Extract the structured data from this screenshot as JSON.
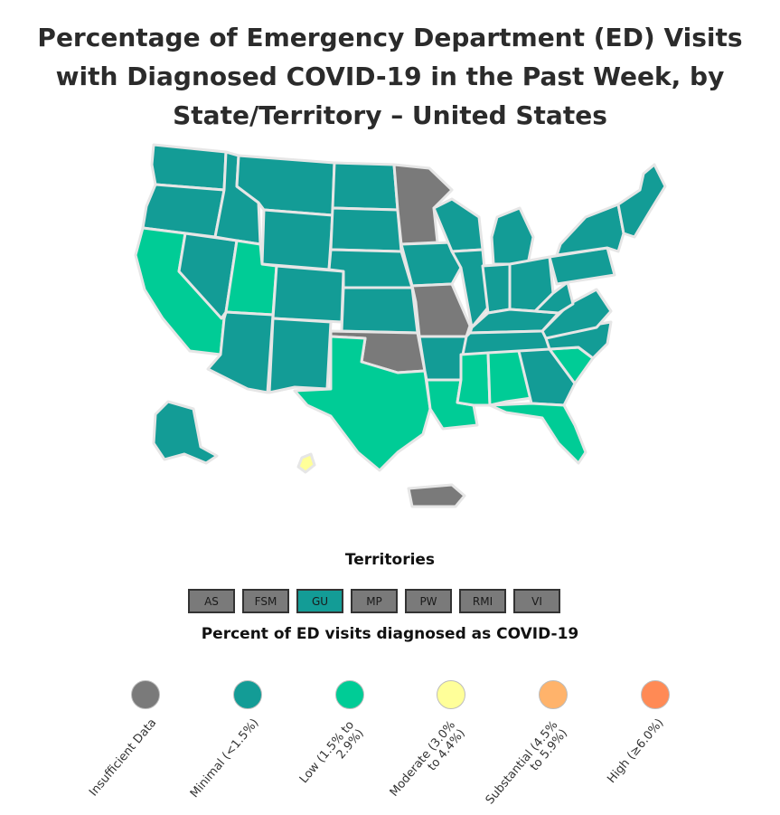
{
  "title": "Percentage of Emergency Department (ED) Visits with Diagnosed COVID-19 in the Past Week, by State/Territory – United States",
  "colors": {
    "insufficient": "#7a7a7a",
    "minimal": "#139c96",
    "low": "#00cc96",
    "moderate": "#ffff99",
    "substantial": "#ffb36b",
    "high": "#ff8a55",
    "border": "#e6e6e6"
  },
  "map": {
    "regions": [
      {
        "name": "Washington",
        "level": "minimal"
      },
      {
        "name": "Oregon",
        "level": "minimal"
      },
      {
        "name": "California",
        "level": "low"
      },
      {
        "name": "Nevada",
        "level": "minimal"
      },
      {
        "name": "Idaho",
        "level": "minimal"
      },
      {
        "name": "Montana",
        "level": "minimal"
      },
      {
        "name": "Wyoming",
        "level": "minimal"
      },
      {
        "name": "Utah",
        "level": "low"
      },
      {
        "name": "Arizona",
        "level": "minimal"
      },
      {
        "name": "Colorado",
        "level": "minimal"
      },
      {
        "name": "New Mexico",
        "level": "minimal"
      },
      {
        "name": "North Dakota",
        "level": "minimal"
      },
      {
        "name": "South Dakota",
        "level": "minimal"
      },
      {
        "name": "Nebraska",
        "level": "minimal"
      },
      {
        "name": "Kansas",
        "level": "minimal"
      },
      {
        "name": "Oklahoma",
        "level": "insufficient"
      },
      {
        "name": "Texas",
        "level": "low"
      },
      {
        "name": "Minnesota",
        "level": "insufficient"
      },
      {
        "name": "Iowa",
        "level": "minimal"
      },
      {
        "name": "Missouri",
        "level": "insufficient"
      },
      {
        "name": "Arkansas",
        "level": "minimal"
      },
      {
        "name": "Louisiana",
        "level": "low"
      },
      {
        "name": "Wisconsin",
        "level": "minimal"
      },
      {
        "name": "Illinois",
        "level": "minimal"
      },
      {
        "name": "Michigan",
        "level": "minimal"
      },
      {
        "name": "Indiana",
        "level": "minimal"
      },
      {
        "name": "Ohio",
        "level": "minimal"
      },
      {
        "name": "Kentucky",
        "level": "minimal"
      },
      {
        "name": "Tennessee",
        "level": "minimal"
      },
      {
        "name": "Mississippi",
        "level": "low"
      },
      {
        "name": "Alabama",
        "level": "low"
      },
      {
        "name": "Georgia",
        "level": "minimal"
      },
      {
        "name": "Florida",
        "level": "low"
      },
      {
        "name": "South Carolina",
        "level": "low"
      },
      {
        "name": "North Carolina",
        "level": "minimal"
      },
      {
        "name": "Virginia",
        "level": "minimal"
      },
      {
        "name": "West Virginia",
        "level": "minimal"
      },
      {
        "name": "Pennsylvania",
        "level": "minimal"
      },
      {
        "name": "New York",
        "level": "minimal"
      },
      {
        "name": "New England",
        "level": "minimal"
      },
      {
        "name": "Alaska",
        "level": "minimal"
      },
      {
        "name": "Hawaii",
        "level": "moderate"
      },
      {
        "name": "Puerto Rico",
        "level": "insufficient"
      }
    ]
  },
  "territories": {
    "title": "Territories",
    "items": [
      {
        "label": "AS",
        "level": "insufficient"
      },
      {
        "label": "FSM",
        "level": "insufficient"
      },
      {
        "label": "GU",
        "level": "minimal"
      },
      {
        "label": "MP",
        "level": "insufficient"
      },
      {
        "label": "PW",
        "level": "insufficient"
      },
      {
        "label": "RMI",
        "level": "insufficient"
      },
      {
        "label": "VI",
        "level": "insufficient"
      }
    ]
  },
  "legend": {
    "title": "Percent of ED visits diagnosed as COVID-19",
    "items": [
      {
        "level": "insufficient",
        "line1": "Insufficient Data",
        "line2": ""
      },
      {
        "level": "minimal",
        "line1": "Minimal (<1.5%)",
        "line2": ""
      },
      {
        "level": "low",
        "line1": "Low (1.5% to",
        "line2": "2.9%)"
      },
      {
        "level": "moderate",
        "line1": "Moderate (3.0%",
        "line2": "to 4.4%)"
      },
      {
        "level": "substantial",
        "line1": "Substantial (4.5%",
        "line2": "to 5.9%)"
      },
      {
        "level": "high",
        "line1": "High (≥6.0%)",
        "line2": ""
      }
    ]
  }
}
